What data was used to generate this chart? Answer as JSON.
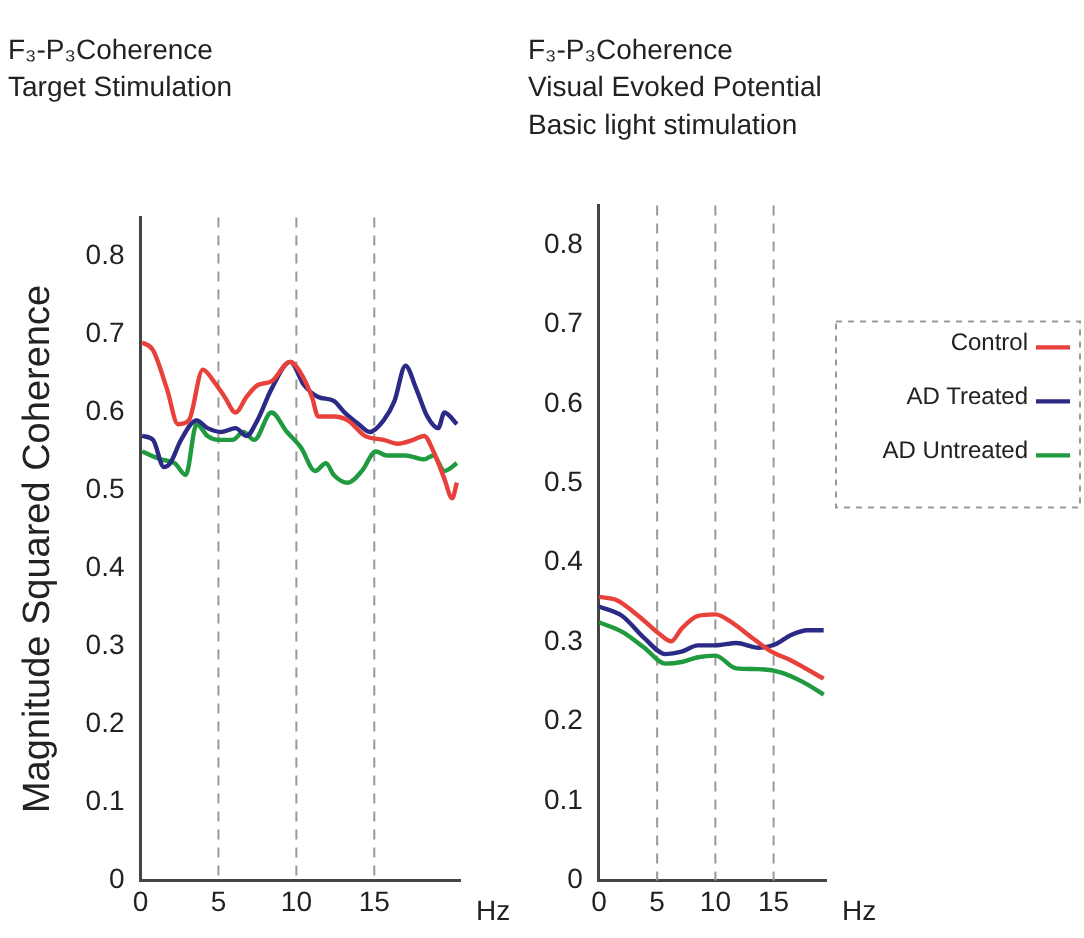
{
  "chart_data": [
    {
      "type": "line",
      "title": "F₃-P₃Coherence\nTarget Stimulation",
      "xlabel": "Hz",
      "ylabel": "Magnitude Squared Coherence",
      "xlim": [
        0,
        20.5
      ],
      "xticks": [
        0,
        5,
        10,
        15
      ],
      "ylim": [
        0,
        0.85
      ],
      "yticks": [
        0,
        0.1,
        0.2,
        0.3,
        0.4,
        0.5,
        0.6,
        0.7,
        0.8
      ],
      "grid": false,
      "legend": false,
      "marker": "none",
      "line_style": "solid",
      "ref_lines": [
        {
          "axis": "x",
          "value": 5,
          "color": "#999999",
          "line_style": "dashed"
        },
        {
          "axis": "x",
          "value": 10,
          "color": "#999999",
          "line_style": "dashed"
        },
        {
          "axis": "x",
          "value": 15,
          "color": "#999999",
          "line_style": "dashed"
        }
      ],
      "series": [
        {
          "color": "#e8413c",
          "x": [
            0.1,
            0.8,
            1.7,
            2.4,
            3.1,
            4.0,
            4.7,
            5.4,
            6.1,
            6.8,
            7.5,
            8.4,
            9.6,
            10.3,
            11.0,
            11.4,
            12.4,
            13.3,
            14.4,
            15.6,
            16.5,
            17.5,
            18.2,
            18.8,
            19.5,
            20.0,
            20.3
          ],
          "values": [
            0.69,
            0.68,
            0.63,
            0.585,
            0.59,
            0.655,
            0.64,
            0.62,
            0.6,
            0.62,
            0.635,
            0.64,
            0.665,
            0.65,
            0.62,
            0.595,
            0.595,
            0.59,
            0.57,
            0.565,
            0.56,
            0.565,
            0.57,
            0.55,
            0.515,
            0.49,
            0.51
          ]
        },
        {
          "color": "#2b2a86",
          "x": [
            0.1,
            0.8,
            1.5,
            1.9,
            2.6,
            3.6,
            4.3,
            5.2,
            6.1,
            6.8,
            7.5,
            8.4,
            9.6,
            10.5,
            11.4,
            12.4,
            13.1,
            14.0,
            14.7,
            15.6,
            16.3,
            17.0,
            17.7,
            18.4,
            19.1,
            19.5,
            20.3
          ],
          "values": [
            0.57,
            0.565,
            0.53,
            0.535,
            0.565,
            0.59,
            0.58,
            0.575,
            0.58,
            0.57,
            0.59,
            0.63,
            0.665,
            0.635,
            0.62,
            0.615,
            0.6,
            0.585,
            0.575,
            0.59,
            0.615,
            0.66,
            0.63,
            0.595,
            0.58,
            0.6,
            0.585
          ]
        },
        {
          "color": "#1f9a3e",
          "x": [
            0.1,
            1.3,
            2.2,
            2.9,
            3.6,
            4.3,
            5.0,
            5.9,
            6.6,
            7.3,
            8.4,
            9.4,
            10.3,
            11.2,
            11.9,
            12.4,
            13.3,
            14.2,
            15.1,
            15.8,
            17.0,
            18.2,
            18.8,
            19.5,
            20.3
          ],
          "values": [
            0.55,
            0.54,
            0.535,
            0.52,
            0.585,
            0.57,
            0.565,
            0.565,
            0.575,
            0.565,
            0.6,
            0.575,
            0.555,
            0.525,
            0.535,
            0.52,
            0.51,
            0.525,
            0.55,
            0.545,
            0.545,
            0.54,
            0.545,
            0.525,
            0.535
          ]
        }
      ]
    },
    {
      "type": "line",
      "title": "F₃-P₃Coherence\nVisual Evoked Potential\nBasic light stimulation",
      "xlabel": "Hz",
      "xlim": [
        0,
        19.5
      ],
      "xticks": [
        0,
        5,
        10,
        15
      ],
      "ylim": [
        0,
        0.85
      ],
      "yticks": [
        0,
        0.1,
        0.2,
        0.3,
        0.4,
        0.5,
        0.6,
        0.7,
        0.8
      ],
      "grid": false,
      "legend": "right",
      "marker": "none",
      "line_style": "solid",
      "ref_lines": [
        {
          "axis": "x",
          "value": 5,
          "color": "#999999",
          "line_style": "dashed"
        },
        {
          "axis": "x",
          "value": 10,
          "color": "#999999",
          "line_style": "dashed"
        },
        {
          "axis": "x",
          "value": 15,
          "color": "#999999",
          "line_style": "dashed"
        }
      ],
      "series": [
        {
          "name": "Control",
          "color": "#e8413c",
          "x": [
            0,
            1.5,
            3.4,
            5.3,
            6.2,
            7.1,
            8.5,
            10.0,
            11.4,
            13.2,
            14.7,
            16.5,
            19.3
          ],
          "values": [
            0.357,
            0.353,
            0.333,
            0.309,
            0.301,
            0.317,
            0.333,
            0.335,
            0.325,
            0.305,
            0.289,
            0.277,
            0.254
          ]
        },
        {
          "name": "AD Treated",
          "color": "#2b2a86",
          "x": [
            0,
            2.0,
            3.9,
            5.7,
            7.1,
            8.5,
            10.0,
            11.8,
            13.7,
            15.1,
            16.5,
            17.9,
            19.3
          ],
          "values": [
            0.345,
            0.333,
            0.305,
            0.285,
            0.288,
            0.296,
            0.296,
            0.299,
            0.293,
            0.297,
            0.309,
            0.315,
            0.315
          ]
        },
        {
          "name": "AD Untreated",
          "color": "#1f9a3e",
          "x": [
            0,
            2.0,
            3.9,
            5.7,
            7.1,
            8.5,
            10.0,
            11.8,
            13.7,
            15.6,
            17.5,
            19.3
          ],
          "values": [
            0.325,
            0.313,
            0.293,
            0.273,
            0.275,
            0.281,
            0.283,
            0.267,
            0.266,
            0.262,
            0.25,
            0.234
          ]
        }
      ]
    }
  ]
}
